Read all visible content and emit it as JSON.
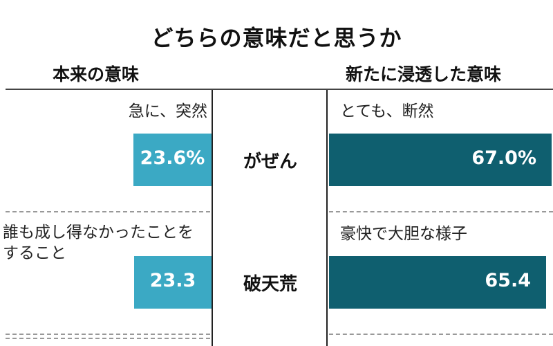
{
  "chart_data": {
    "type": "bar",
    "title": "どちらの意味だと思うか",
    "left_label": "本来の意味",
    "right_label": "新たに浸透した意味",
    "max_value": 100,
    "rows": [
      {
        "term": "がぜん",
        "original_meaning": "急に、突然",
        "original_value": 23.6,
        "original_value_label": "23.6%",
        "new_meaning": "とても、断然",
        "new_value": 67.0,
        "new_value_label": "67.0%"
      },
      {
        "term": "破天荒",
        "original_meaning": "誰も成し得なかったことをすること",
        "original_value": 23.3,
        "original_value_label": "23.3",
        "new_meaning": "豪快で大胆な様子",
        "new_value": 65.4,
        "new_value_label": "65.4"
      }
    ],
    "colors": {
      "original": "#3ba9c4",
      "new": "#0f5f6f"
    },
    "grid": false
  }
}
